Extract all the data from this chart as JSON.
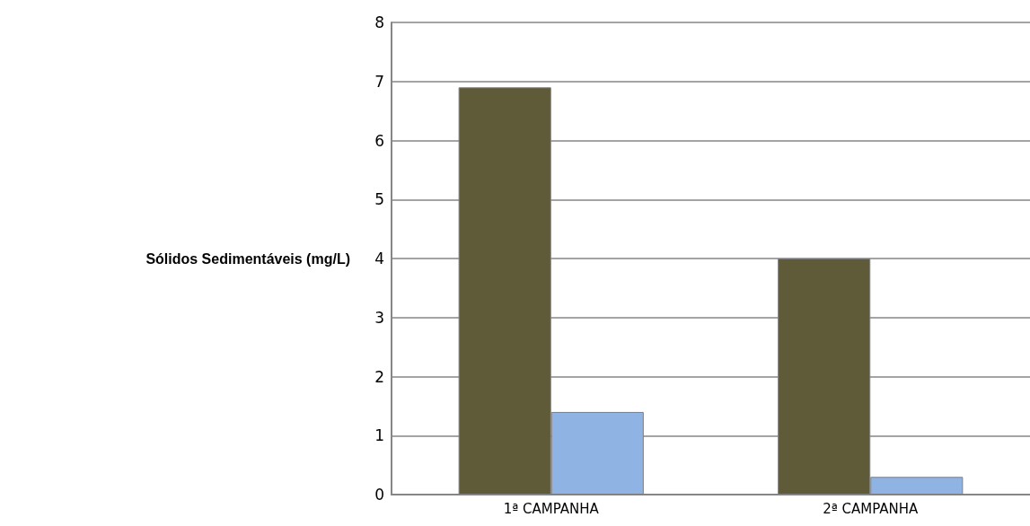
{
  "chart_data": {
    "type": "bar",
    "ylabel": "Sólidos Sedimentáveis (mg/L)",
    "categories": [
      "1ª CAMPANHA",
      "2ª CAMPANHA"
    ],
    "series": [
      {
        "color": "#5f5a38",
        "values": [
          6.9,
          4.0
        ]
      },
      {
        "color": "#8fb4e3",
        "values": [
          1.4,
          0.3
        ]
      }
    ],
    "ylim": [
      0,
      8
    ],
    "yticks": [
      0,
      1,
      2,
      3,
      4,
      5,
      6,
      7,
      8
    ],
    "grid": "y"
  }
}
